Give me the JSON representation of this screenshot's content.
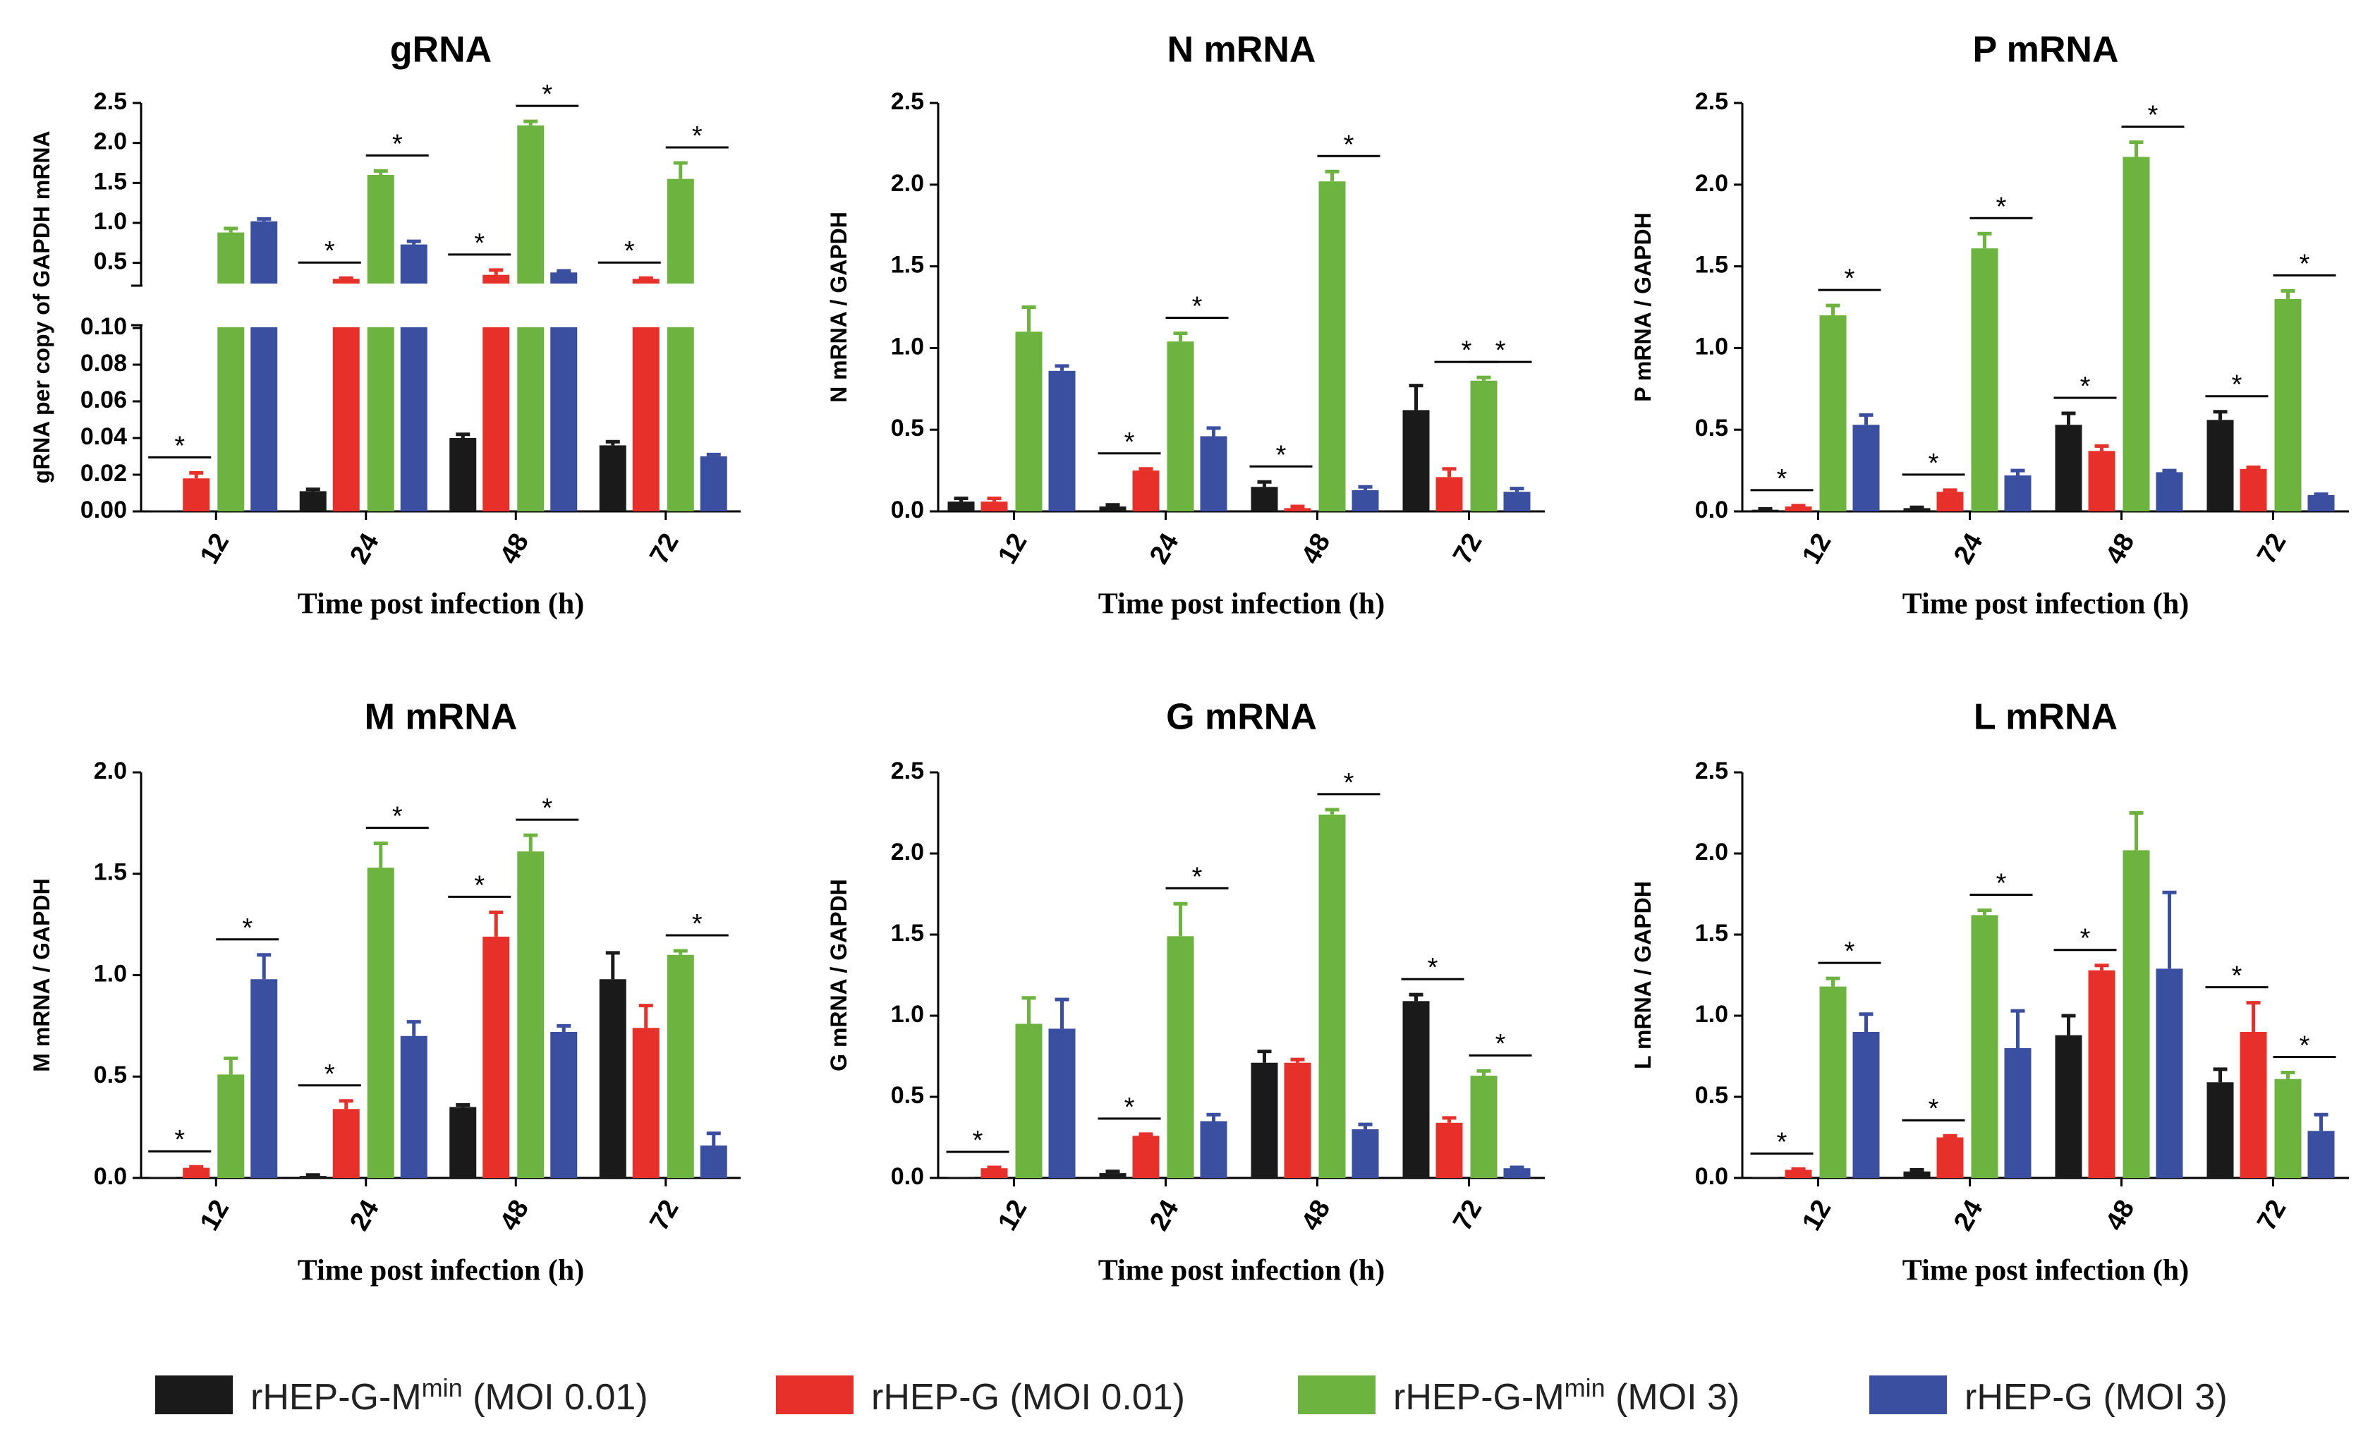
{
  "chart_data": {
    "type": "bar",
    "layout": "2x3 panel grid of grouped bar charts with error bars",
    "categories": [
      "12",
      "24",
      "48",
      "72"
    ],
    "xlabel": "Time post infection (h)",
    "series_names": [
      "rHEP-G-Mmin (MOI 0.01)",
      "rHEP-G (MOI 0.01)",
      "rHEP-G-Mmin (MOI 3)",
      "rHEP-G (MOI 3)"
    ],
    "colors": [
      "#1a1a1a",
      "#e8302a",
      "#6db33f",
      "#3a4fa0"
    ],
    "legend": {
      "position": "bottom",
      "entries": [
        {
          "main": "rHEP-G-M",
          "sup": "min",
          "suffix": " (MOI 0.01)"
        },
        {
          "main": "rHEP-G (MOI 0.01)",
          "sup": "",
          "suffix": ""
        },
        {
          "main": "rHEP-G-M",
          "sup": "min",
          "suffix": " (MOI 3)"
        },
        {
          "main": "rHEP-G (MOI 3)",
          "sup": "",
          "suffix": ""
        }
      ]
    },
    "panels": [
      {
        "title": "gRNA",
        "ylabel": "gRNA per copy of GAPDH mRNA",
        "broken_axis": true,
        "ylim_lower": [
          0,
          0.1
        ],
        "ylim_upper": [
          0.25,
          2.5
        ],
        "yticks_lower": [
          "0.00",
          "0.02",
          "0.04",
          "0.06",
          "0.08",
          "0.10"
        ],
        "yticks_upper": [
          "0.5",
          "1.0",
          "1.5",
          "2.0",
          "2.5"
        ],
        "series": [
          {
            "name": "rHEP-G-Mmin (MOI 0.01)",
            "values": [
              0.0005,
              0.011,
              0.04,
              0.036
            ],
            "errors": [
              0.0002,
              0.001,
              0.002,
              0.002
            ]
          },
          {
            "name": "rHEP-G (MOI 0.01)",
            "values": [
              0.018,
              0.3,
              0.35,
              0.3
            ],
            "errors": [
              0.003,
              0.01,
              0.06,
              0.01
            ]
          },
          {
            "name": "rHEP-G-Mmin (MOI 3)",
            "values": [
              0.88,
              1.6,
              2.22,
              1.55
            ],
            "errors": [
              0.05,
              0.05,
              0.05,
              0.2
            ]
          },
          {
            "name": "rHEP-G (MOI 3)",
            "values": [
              1.02,
              0.73,
              0.38,
              0.03
            ],
            "errors": [
              0.03,
              0.04,
              0.02,
              0.001
            ]
          }
        ],
        "sig_pairs": [
          {
            "category": "12",
            "between": [
              0,
              1
            ],
            "label": "*"
          },
          {
            "category": "24",
            "between": [
              0,
              1
            ],
            "label": "*"
          },
          {
            "category": "24",
            "between": [
              2,
              3
            ],
            "label": "*"
          },
          {
            "category": "48",
            "between": [
              0,
              1
            ],
            "label": "*"
          },
          {
            "category": "48",
            "between": [
              2,
              3
            ],
            "label": "*"
          },
          {
            "category": "72",
            "between": [
              0,
              1
            ],
            "label": "*"
          },
          {
            "category": "72",
            "between": [
              2,
              3
            ],
            "label": "*"
          }
        ]
      },
      {
        "title": "N mRNA",
        "ylabel": "N mRNA / GAPDH",
        "ylim": [
          0,
          2.5
        ],
        "yticks": [
          "0.0",
          "0.5",
          "1.0",
          "1.5",
          "2.0",
          "2.5"
        ],
        "series": [
          {
            "name": "rHEP-G-Mmin (MOI 0.01)",
            "values": [
              0.06,
              0.03,
              0.15,
              0.62
            ],
            "errors": [
              0.02,
              0.01,
              0.03,
              0.15
            ]
          },
          {
            "name": "rHEP-G (MOI 0.01)",
            "values": [
              0.06,
              0.25,
              0.02,
              0.21
            ],
            "errors": [
              0.02,
              0.01,
              0.01,
              0.05
            ]
          },
          {
            "name": "rHEP-G-Mmin (MOI 3)",
            "values": [
              1.1,
              1.04,
              2.02,
              0.8
            ],
            "errors": [
              0.15,
              0.05,
              0.06,
              0.02
            ]
          },
          {
            "name": "rHEP-G (MOI 3)",
            "values": [
              0.86,
              0.46,
              0.13,
              0.12
            ],
            "errors": [
              0.03,
              0.05,
              0.02,
              0.02
            ]
          }
        ],
        "sig_pairs": [
          {
            "category": "24",
            "between": [
              0,
              1
            ],
            "label": "*"
          },
          {
            "category": "24",
            "between": [
              2,
              3
            ],
            "label": "*"
          },
          {
            "category": "48",
            "between": [
              0,
              1
            ],
            "label": "*"
          },
          {
            "category": "48",
            "between": [
              2,
              3
            ],
            "label": "*"
          },
          {
            "category": "72",
            "between": [
              1,
              2
            ],
            "label": "*"
          },
          {
            "category": "72",
            "between": [
              2,
              3
            ],
            "label": "*"
          }
        ]
      },
      {
        "title": "P mRNA",
        "ylabel": "P mRNA / GAPDH",
        "ylim": [
          0,
          2.5
        ],
        "yticks": [
          "0.0",
          "0.5",
          "1.0",
          "1.5",
          "2.0",
          "2.5"
        ],
        "series": [
          {
            "name": "rHEP-G-Mmin (MOI 0.01)",
            "values": [
              0.01,
              0.02,
              0.53,
              0.56
            ],
            "errors": [
              0.005,
              0.005,
              0.07,
              0.05
            ]
          },
          {
            "name": "rHEP-G (MOI 0.01)",
            "values": [
              0.03,
              0.12,
              0.37,
              0.26
            ],
            "errors": [
              0.005,
              0.01,
              0.03,
              0.01
            ]
          },
          {
            "name": "rHEP-G-Mmin (MOI 3)",
            "values": [
              1.2,
              1.61,
              2.17,
              1.3
            ],
            "errors": [
              0.06,
              0.09,
              0.09,
              0.05
            ]
          },
          {
            "name": "rHEP-G (MOI 3)",
            "values": [
              0.53,
              0.22,
              0.24,
              0.1
            ],
            "errors": [
              0.06,
              0.03,
              0.01,
              0.005
            ]
          }
        ],
        "sig_pairs": [
          {
            "category": "12",
            "between": [
              0,
              1
            ],
            "label": "*"
          },
          {
            "category": "12",
            "between": [
              2,
              3
            ],
            "label": "*"
          },
          {
            "category": "24",
            "between": [
              0,
              1
            ],
            "label": "*"
          },
          {
            "category": "24",
            "between": [
              2,
              3
            ],
            "label": "*"
          },
          {
            "category": "48",
            "between": [
              0,
              1
            ],
            "label": "*"
          },
          {
            "category": "48",
            "between": [
              2,
              3
            ],
            "label": "*"
          },
          {
            "category": "72",
            "between": [
              0,
              1
            ],
            "label": "*"
          },
          {
            "category": "72",
            "between": [
              2,
              3
            ],
            "label": "*"
          }
        ]
      },
      {
        "title": "M mRNA",
        "ylabel": "M mRNA / GAPDH",
        "ylim": [
          0,
          2.0
        ],
        "yticks": [
          "0.0",
          "0.5",
          "1.0",
          "1.5",
          "2.0"
        ],
        "series": [
          {
            "name": "rHEP-G-Mmin (MOI 0.01)",
            "values": [
              0.005,
              0.01,
              0.35,
              0.98
            ],
            "errors": [
              0.002,
              0.005,
              0.01,
              0.13
            ]
          },
          {
            "name": "rHEP-G (MOI 0.01)",
            "values": [
              0.05,
              0.34,
              1.19,
              0.74
            ],
            "errors": [
              0.005,
              0.04,
              0.12,
              0.11
            ]
          },
          {
            "name": "rHEP-G-Mmin (MOI 3)",
            "values": [
              0.51,
              1.53,
              1.61,
              1.1
            ],
            "errors": [
              0.08,
              0.12,
              0.08,
              0.02
            ]
          },
          {
            "name": "rHEP-G (MOI 3)",
            "values": [
              0.98,
              0.7,
              0.72,
              0.16
            ],
            "errors": [
              0.12,
              0.07,
              0.03,
              0.06
            ]
          }
        ],
        "sig_pairs": [
          {
            "category": "12",
            "between": [
              0,
              1
            ],
            "label": "*"
          },
          {
            "category": "12",
            "between": [
              2,
              3
            ],
            "label": "*"
          },
          {
            "category": "24",
            "between": [
              0,
              1
            ],
            "label": "*"
          },
          {
            "category": "24",
            "between": [
              2,
              3
            ],
            "label": "*"
          },
          {
            "category": "48",
            "between": [
              0,
              1
            ],
            "label": "*"
          },
          {
            "category": "48",
            "between": [
              2,
              3
            ],
            "label": "*"
          },
          {
            "category": "72",
            "between": [
              2,
              3
            ],
            "label": "*"
          }
        ]
      },
      {
        "title": "G mRNA",
        "ylabel": "G mRNA / GAPDH",
        "ylim": [
          0,
          2.5
        ],
        "yticks": [
          "0.0",
          "0.5",
          "1.0",
          "1.5",
          "2.0",
          "2.5"
        ],
        "series": [
          {
            "name": "rHEP-G-Mmin (MOI 0.01)",
            "values": [
              0.005,
              0.03,
              0.71,
              1.09
            ],
            "errors": [
              0.002,
              0.01,
              0.07,
              0.04
            ]
          },
          {
            "name": "rHEP-G (MOI 0.01)",
            "values": [
              0.06,
              0.26,
              0.71,
              0.34
            ],
            "errors": [
              0.005,
              0.01,
              0.02,
              0.03
            ]
          },
          {
            "name": "rHEP-G-Mmin (MOI 3)",
            "values": [
              0.95,
              1.49,
              2.24,
              0.63
            ],
            "errors": [
              0.16,
              0.2,
              0.03,
              0.03
            ]
          },
          {
            "name": "rHEP-G (MOI 3)",
            "values": [
              0.92,
              0.35,
              0.3,
              0.06
            ],
            "errors": [
              0.18,
              0.04,
              0.03,
              0.005
            ]
          }
        ],
        "sig_pairs": [
          {
            "category": "12",
            "between": [
              0,
              1
            ],
            "label": "*"
          },
          {
            "category": "24",
            "between": [
              0,
              1
            ],
            "label": "*"
          },
          {
            "category": "24",
            "between": [
              2,
              3
            ],
            "label": "*"
          },
          {
            "category": "48",
            "between": [
              2,
              3
            ],
            "label": "*"
          },
          {
            "category": "72",
            "between": [
              0,
              1
            ],
            "label": "*"
          },
          {
            "category": "72",
            "between": [
              2,
              3
            ],
            "label": "*"
          }
        ]
      },
      {
        "title": "L mRNA",
        "ylabel": "L mRNA / GAPDH",
        "ylim": [
          0,
          2.5
        ],
        "yticks": [
          "0.0",
          "0.5",
          "1.0",
          "1.5",
          "2.0",
          "2.5"
        ],
        "series": [
          {
            "name": "rHEP-G-Mmin (MOI 0.01)",
            "values": [
              0.005,
              0.04,
              0.88,
              0.59
            ],
            "errors": [
              0.002,
              0.01,
              0.12,
              0.08
            ]
          },
          {
            "name": "rHEP-G (MOI 0.01)",
            "values": [
              0.05,
              0.25,
              1.28,
              0.9
            ],
            "errors": [
              0.005,
              0.01,
              0.03,
              0.18
            ]
          },
          {
            "name": "rHEP-G-Mmin (MOI 3)",
            "values": [
              1.18,
              1.62,
              2.02,
              0.61
            ],
            "errors": [
              0.05,
              0.03,
              0.23,
              0.04
            ]
          },
          {
            "name": "rHEP-G (MOI 3)",
            "values": [
              0.9,
              0.8,
              1.29,
              0.29
            ],
            "errors": [
              0.11,
              0.23,
              0.47,
              0.1
            ]
          }
        ],
        "sig_pairs": [
          {
            "category": "12",
            "between": [
              0,
              1
            ],
            "label": "*"
          },
          {
            "category": "12",
            "between": [
              2,
              3
            ],
            "label": "*"
          },
          {
            "category": "24",
            "between": [
              0,
              1
            ],
            "label": "*"
          },
          {
            "category": "24",
            "between": [
              2,
              3
            ],
            "label": "*"
          },
          {
            "category": "48",
            "between": [
              0,
              1
            ],
            "label": "*"
          },
          {
            "category": "72",
            "between": [
              0,
              1
            ],
            "label": "*"
          },
          {
            "category": "72",
            "between": [
              2,
              3
            ],
            "label": "*"
          }
        ]
      }
    ]
  }
}
